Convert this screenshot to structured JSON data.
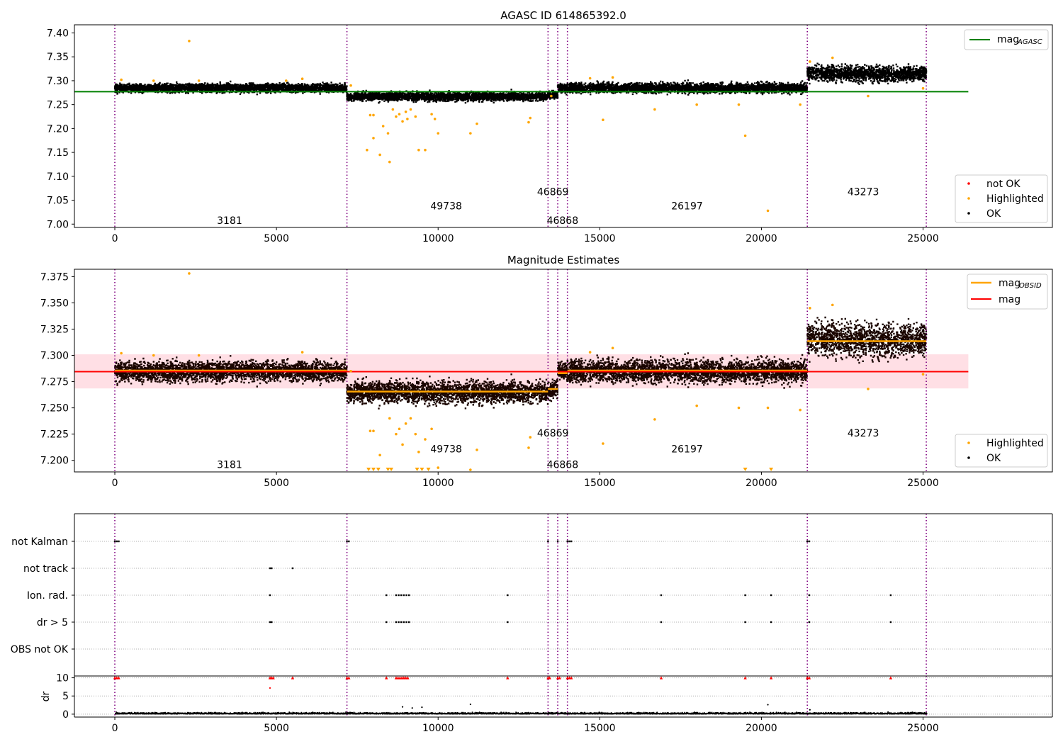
{
  "chart_data": [
    {
      "type": "scatter",
      "title": "AGASC ID 614865392.0",
      "xlabel": "",
      "ylabel": "",
      "xlim": [
        -1250,
        29000
      ],
      "ylim": [
        6.993,
        7.417
      ],
      "x_ticks": [
        0,
        5000,
        10000,
        15000,
        20000,
        25000
      ],
      "x_tick_labels": [
        "0",
        "5000",
        "10000",
        "15000",
        "20000",
        "25000"
      ],
      "y_ticks": [
        7.0,
        7.05,
        7.1,
        7.15,
        7.2,
        7.25,
        7.3,
        7.35,
        7.4
      ],
      "y_tick_labels": [
        "7.00",
        "7.05",
        "7.10",
        "7.15",
        "7.20",
        "7.25",
        "7.30",
        "7.35",
        "7.40"
      ],
      "obsid_boundaries": [
        0,
        7180,
        13400,
        13700,
        14000,
        21420,
        25100
      ],
      "obsid_labels": [
        {
          "text": "3181",
          "x": 3550,
          "y": 7.008
        },
        {
          "text": "49738",
          "x": 10250,
          "y": 7.038
        },
        {
          "text": "46869",
          "x": 13550,
          "y": 7.068
        },
        {
          "text": "46868",
          "x": 13850,
          "y": 7.008
        },
        {
          "text": "26197",
          "x": 17700,
          "y": 7.038
        },
        {
          "text": "43273",
          "x": 23150,
          "y": 7.068
        }
      ],
      "ok_bands": [
        {
          "x0": 0,
          "x1": 7180,
          "center": 7.285,
          "spread": 0.006
        },
        {
          "x0": 7180,
          "x1": 13400,
          "center": 7.267,
          "spread": 0.006
        },
        {
          "x0": 13400,
          "x1": 13700,
          "center": 7.27,
          "spread": 0.006
        },
        {
          "x0": 13700,
          "x1": 14000,
          "center": 7.284,
          "spread": 0.006
        },
        {
          "x0": 14000,
          "x1": 21420,
          "center": 7.285,
          "spread": 0.007
        },
        {
          "x0": 21420,
          "x1": 25100,
          "center": 7.315,
          "spread": 0.011
        }
      ],
      "highlighted": [
        [
          2300,
          7.383
        ],
        [
          200,
          7.302
        ],
        [
          1200,
          7.3
        ],
        [
          2600,
          7.3
        ],
        [
          5800,
          7.304
        ],
        [
          5300,
          7.3
        ],
        [
          7300,
          7.29
        ],
        [
          7900,
          7.228
        ],
        [
          8000,
          7.228
        ],
        [
          8000,
          7.18
        ],
        [
          8200,
          7.145
        ],
        [
          7800,
          7.155
        ],
        [
          8300,
          7.205
        ],
        [
          8500,
          7.13
        ],
        [
          8450,
          7.19
        ],
        [
          8600,
          7.24
        ],
        [
          8700,
          7.225
        ],
        [
          8800,
          7.23
        ],
        [
          8900,
          7.215
        ],
        [
          9000,
          7.235
        ],
        [
          9050,
          7.22
        ],
        [
          9150,
          7.24
        ],
        [
          9300,
          7.225
        ],
        [
          9400,
          7.155
        ],
        [
          9600,
          7.155
        ],
        [
          9800,
          7.23
        ],
        [
          9900,
          7.22
        ],
        [
          10000,
          7.19
        ],
        [
          11000,
          7.19
        ],
        [
          11200,
          7.21
        ],
        [
          12800,
          7.213
        ],
        [
          12850,
          7.222
        ],
        [
          13500,
          7.268
        ],
        [
          14700,
          7.305
        ],
        [
          15100,
          7.218
        ],
        [
          15400,
          7.307
        ],
        [
          16700,
          7.24
        ],
        [
          18000,
          7.25
        ],
        [
          19500,
          7.185
        ],
        [
          19300,
          7.25
        ],
        [
          20200,
          7.028
        ],
        [
          21200,
          7.25
        ],
        [
          21500,
          7.34
        ],
        [
          22200,
          7.348
        ],
        [
          23300,
          7.268
        ],
        [
          25000,
          7.284
        ]
      ],
      "legend": {
        "agasc_line": {
          "label_main": "mag",
          "label_sub": "AGASC"
        },
        "markers": [
          "not OK",
          "Highlighted",
          "OK"
        ]
      },
      "reference_lines": {
        "mag_agasc": 7.277,
        "x0": -1250,
        "x1": 26400
      },
      "colors": {
        "ok": "#000000",
        "highlighted": "#FFA500",
        "not_ok": "#FF0000",
        "agasc": "#008000",
        "boundary": "#800080"
      }
    },
    {
      "type": "scatter",
      "title": "Magnitude Estimates",
      "xlabel": "",
      "ylabel": "",
      "xlim": [
        -1250,
        29000
      ],
      "ylim": [
        7.189,
        7.382
      ],
      "x_ticks": [
        0,
        5000,
        10000,
        15000,
        20000,
        25000
      ],
      "x_tick_labels": [
        "0",
        "5000",
        "10000",
        "15000",
        "20000",
        "25000"
      ],
      "y_ticks": [
        7.2,
        7.225,
        7.25,
        7.275,
        7.3,
        7.325,
        7.35,
        7.375
      ],
      "y_tick_labels": [
        "7.200",
        "7.225",
        "7.250",
        "7.275",
        "7.300",
        "7.325",
        "7.350",
        "7.375"
      ],
      "obsid_boundaries": [
        0,
        7180,
        13400,
        13700,
        14000,
        21420,
        25100
      ],
      "obsid_labels": [
        {
          "text": "3181",
          "x": 3550,
          "y": 7.196
        },
        {
          "text": "49738",
          "x": 10250,
          "y": 7.211
        },
        {
          "text": "46869",
          "x": 13550,
          "y": 7.226
        },
        {
          "text": "46868",
          "x": 13850,
          "y": 7.196
        },
        {
          "text": "26197",
          "x": 17700,
          "y": 7.211
        },
        {
          "text": "43273",
          "x": 23150,
          "y": 7.226
        }
      ],
      "mag": 7.2845,
      "mag_band": [
        7.2685,
        7.301
      ],
      "mag_obsid": [
        {
          "x0": 0,
          "x1": 7180,
          "value": 7.2855
        },
        {
          "x0": 7180,
          "x1": 13400,
          "value": 7.2655
        },
        {
          "x0": 13400,
          "x1": 13700,
          "value": 7.268
        },
        {
          "x0": 13700,
          "x1": 14000,
          "value": 7.283
        },
        {
          "x0": 14000,
          "x1": 21420,
          "value": 7.2855
        },
        {
          "x0": 21420,
          "x1": 25100,
          "value": 7.3135
        }
      ],
      "ok_bands": [
        {
          "x0": 0,
          "x1": 7180,
          "center": 7.285,
          "spread": 0.0065
        },
        {
          "x0": 7180,
          "x1": 13400,
          "center": 7.265,
          "spread": 0.007
        },
        {
          "x0": 13400,
          "x1": 13700,
          "center": 7.268,
          "spread": 0.006
        },
        {
          "x0": 13700,
          "x1": 14000,
          "center": 7.285,
          "spread": 0.006
        },
        {
          "x0": 14000,
          "x1": 21420,
          "center": 7.285,
          "spread": 0.0075
        },
        {
          "x0": 21420,
          "x1": 25100,
          "center": 7.315,
          "spread": 0.011
        }
      ],
      "highlighted": [
        [
          2300,
          7.378
        ],
        [
          200,
          7.302
        ],
        [
          1200,
          7.3
        ],
        [
          2600,
          7.3
        ],
        [
          5800,
          7.303
        ],
        [
          7300,
          7.285
        ],
        [
          7900,
          7.228
        ],
        [
          8000,
          7.228
        ],
        [
          8200,
          7.205
        ],
        [
          8500,
          7.24
        ],
        [
          8700,
          7.225
        ],
        [
          8800,
          7.23
        ],
        [
          8900,
          7.215
        ],
        [
          9000,
          7.235
        ],
        [
          9150,
          7.24
        ],
        [
          9300,
          7.225
        ],
        [
          9400,
          7.208
        ],
        [
          9600,
          7.22
        ],
        [
          9800,
          7.23
        ],
        [
          10000,
          7.193
        ],
        [
          11000,
          7.191
        ],
        [
          11200,
          7.21
        ],
        [
          12800,
          7.212
        ],
        [
          12850,
          7.222
        ],
        [
          14700,
          7.303
        ],
        [
          15100,
          7.216
        ],
        [
          15400,
          7.307
        ],
        [
          16700,
          7.239
        ],
        [
          18000,
          7.252
        ],
        [
          19300,
          7.25
        ],
        [
          20200,
          7.25
        ],
        [
          21200,
          7.248
        ],
        [
          21500,
          7.345
        ],
        [
          22200,
          7.348
        ],
        [
          23300,
          7.268
        ],
        [
          25000,
          7.282
        ]
      ],
      "highlighted_clipped_x": [
        7850,
        8000,
        8150,
        8450,
        8550,
        9350,
        9500,
        9700,
        19500,
        20300
      ],
      "legend": {
        "lines": [
          {
            "label_main": "mag",
            "label_sub": "OBSID"
          },
          {
            "label_main": "mag",
            "label_sub": ""
          }
        ],
        "markers": [
          "Highlighted",
          "OK"
        ]
      },
      "reference_lines": {
        "x0": -1250,
        "x1": 26400
      },
      "colors": {
        "ok": "#000000",
        "highlighted": "#FFA500",
        "mag": "#FF0000",
        "mag_band": "#FFC0CB",
        "mag_obsid": "#FFA500",
        "boundary": "#800080"
      }
    },
    {
      "type": "scatter",
      "title": "",
      "xlabel": "",
      "ylabel": "",
      "xlim": [
        -1250,
        29000
      ],
      "categories": [
        "not Kalman",
        "not track",
        "Ion. rad.",
        "dr > 5",
        "OBS not OK"
      ],
      "obsid_boundaries": [
        0,
        7180,
        13400,
        13700,
        14000,
        21420,
        25100
      ],
      "flags": {
        "not Kalman": [
          0,
          60,
          120,
          7180,
          7240,
          13400,
          13700,
          14000,
          14060,
          14120,
          21420,
          21480
        ],
        "not track": [
          4800,
          4850,
          5500
        ],
        "Ion. rad.": [
          4800,
          8400,
          8700,
          8780,
          8860,
          8940,
          9020,
          9100,
          12150,
          16900,
          19500,
          20300,
          21480,
          24000
        ],
        "dr > 5": [
          4800,
          4850,
          8400,
          8700,
          8780,
          8860,
          8940,
          9020,
          9100,
          12150,
          16900,
          19500,
          20300,
          21480,
          24000
        ],
        "OBS not OK": []
      },
      "colors": {
        "flag": "#000000",
        "boundary": "#800080",
        "grid": "#b0b0b0"
      }
    },
    {
      "type": "scatter",
      "title": "",
      "xlabel": "",
      "ylabel": "dr",
      "xlim": [
        -1250,
        29000
      ],
      "ylim": [
        -0.8,
        10.5
      ],
      "y_ticks": [
        0,
        5,
        10
      ],
      "y_tick_labels": [
        "0",
        "5",
        "10"
      ],
      "x_ticks": [
        0,
        5000,
        10000,
        15000,
        20000,
        25000
      ],
      "x_tick_labels": [
        "0",
        "5000",
        "10000",
        "15000",
        "20000",
        "25000"
      ],
      "obsid_boundaries": [
        0,
        7180,
        13400,
        13700,
        14000,
        21420,
        25100
      ],
      "dr_clipped_x": [
        0,
        60,
        120,
        4800,
        4850,
        4900,
        5500,
        7180,
        7240,
        8400,
        8700,
        8760,
        8820,
        8880,
        8940,
        9000,
        9060,
        12150,
        13400,
        13450,
        13700,
        13760,
        14000,
        14060,
        14120,
        16900,
        19500,
        20300,
        21420,
        21480,
        24000
      ],
      "dr_outliers": [
        [
          4800,
          7.2
        ],
        [
          8900,
          2.0
        ],
        [
          9200,
          1.7
        ],
        [
          9500,
          1.9
        ],
        [
          11000,
          2.7
        ],
        [
          20200,
          2.6
        ],
        [
          21500,
          1.2
        ]
      ],
      "colors": {
        "ok": "#000000",
        "clipped": "#FF0000",
        "boundary": "#800080",
        "grid": "#b0b0b0"
      }
    }
  ]
}
